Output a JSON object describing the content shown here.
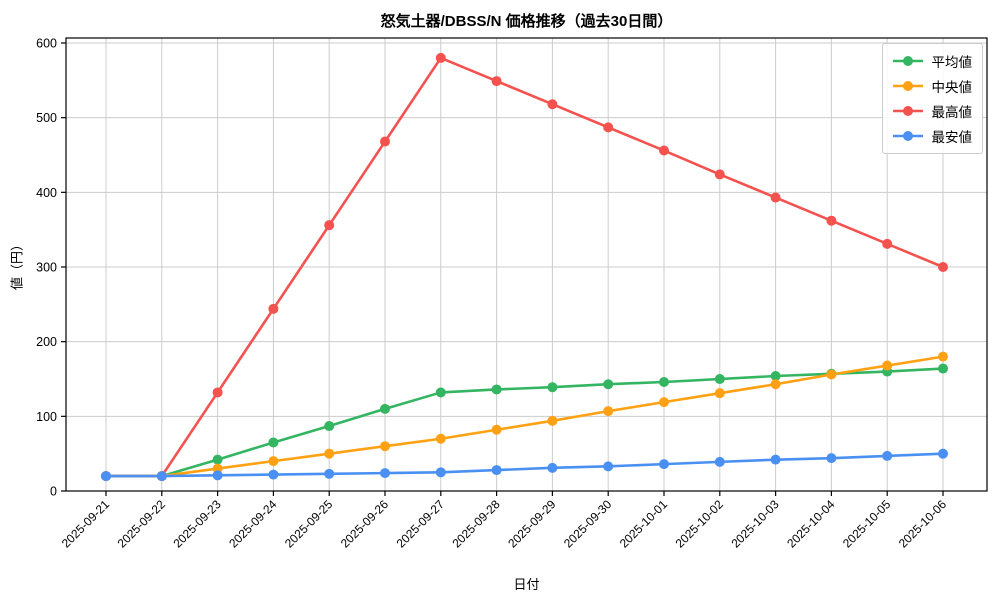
{
  "chart_data": {
    "type": "line",
    "title": "怒気土器/DBSS/N 価格推移（過去30日間）",
    "xlabel": "日付",
    "ylabel": "値（円）",
    "x": [
      "2025-09-21",
      "2025-09-22",
      "2025-09-23",
      "2025-09-24",
      "2025-09-25",
      "2025-09-26",
      "2025-09-27",
      "2025-09-28",
      "2025-09-29",
      "2025-09-30",
      "2025-10-01",
      "2025-10-02",
      "2025-10-03",
      "2025-10-04",
      "2025-10-05",
      "2025-10-06"
    ],
    "series": [
      {
        "name": "平均値",
        "color": "#33b561",
        "values": [
          20,
          20,
          42,
          65,
          87,
          110,
          132,
          136,
          139,
          143,
          146,
          150,
          154,
          157,
          160,
          164
        ]
      },
      {
        "name": "中央値",
        "color": "#ffa113",
        "values": [
          20,
          20,
          30,
          40,
          50,
          60,
          70,
          82,
          94,
          107,
          119,
          131,
          143,
          156,
          168,
          180
        ]
      },
      {
        "name": "最高値",
        "color": "#f4524e",
        "values": [
          20,
          20,
          132,
          244,
          356,
          468,
          580,
          549,
          518,
          487,
          456,
          424,
          393,
          362,
          331,
          300
        ]
      },
      {
        "name": "最安値",
        "color": "#4a90f2",
        "values": [
          20,
          20,
          21,
          22,
          23,
          24,
          25,
          28,
          31,
          33,
          36,
          39,
          42,
          44,
          47,
          50
        ]
      }
    ],
    "ylim": [
      0,
      600
    ],
    "yticks": [
      0,
      100,
      200,
      300,
      400,
      500,
      600
    ],
    "grid": true,
    "grid_color": "#cccccc",
    "legend_position": "upper right",
    "x_tick_rotation": 45,
    "marker": "circle",
    "background": "#ffffff"
  }
}
